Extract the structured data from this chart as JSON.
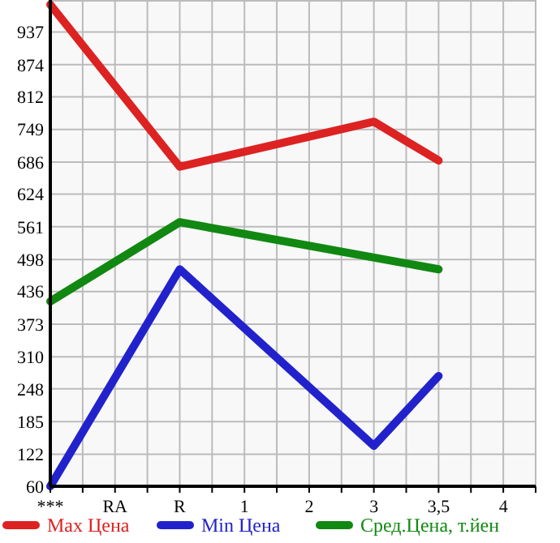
{
  "chart_data": {
    "type": "line",
    "categories": [
      "***",
      "RA",
      "R",
      "1",
      "2",
      "3",
      "3,5",
      "4"
    ],
    "ylim": [
      60,
      999
    ],
    "yticks": [
      60,
      122,
      185,
      248,
      310,
      373,
      436,
      498,
      561,
      624,
      686,
      749,
      812,
      874,
      937
    ],
    "grid": true,
    "legend": "bottom",
    "marker": "none",
    "line_style": "solid",
    "series": [
      {
        "name": "Max Цена",
        "color": "#dd2222",
        "values": [
          990,
          null,
          677,
          null,
          null,
          764,
          689,
          null
        ]
      },
      {
        "name": "Min Цена",
        "color": "#2222cc",
        "values": [
          60,
          null,
          479,
          null,
          null,
          138,
          273,
          null
        ]
      },
      {
        "name": "Сред.Цена, т.йен",
        "color": "#118811",
        "values": [
          417,
          null,
          570,
          null,
          null,
          null,
          479,
          null
        ]
      }
    ]
  }
}
